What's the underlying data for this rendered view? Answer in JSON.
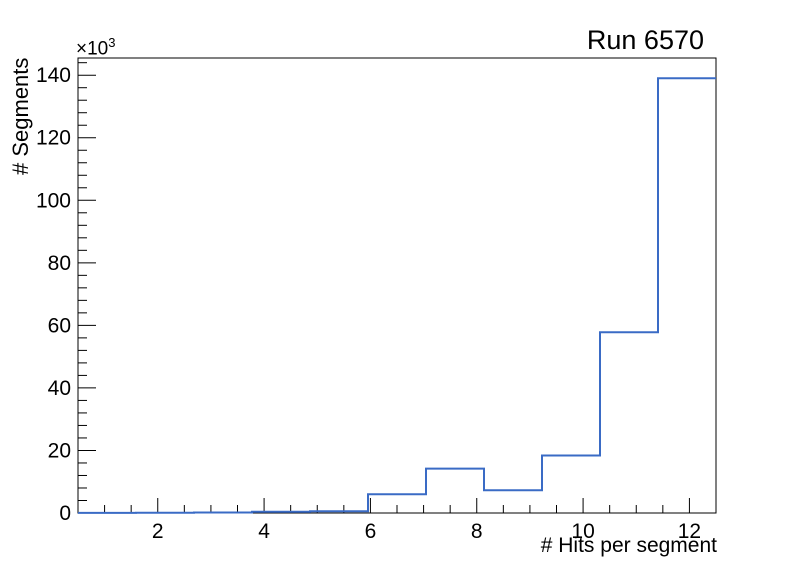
{
  "chart_data": {
    "type": "histogram-step",
    "title": "Run 6570",
    "xlabel": "# Hits per segment",
    "ylabel": "# Segments",
    "y_axis_multiplier": {
      "base": "×10",
      "exp": "3"
    },
    "xlim": [
      0.5,
      12.5
    ],
    "ylim": [
      0,
      145500
    ],
    "bin_edges": [
      0.5,
      1.591,
      2.682,
      3.773,
      4.864,
      5.955,
      7.045,
      8.136,
      9.227,
      10.318,
      11.409,
      12.5
    ],
    "values": [
      20,
      60,
      150,
      400,
      550,
      6000,
      14200,
      7300,
      18400,
      57800,
      139000
    ],
    "x_major_ticks": [
      2,
      4,
      6,
      8,
      10,
      12
    ],
    "x_minor_step": 0.5,
    "y_major_ticks": [
      0,
      20000,
      40000,
      60000,
      80000,
      100000,
      120000,
      140000
    ],
    "y_tick_labels": [
      "0",
      "20",
      "40",
      "60",
      "80",
      "100",
      "120",
      "140"
    ],
    "y_minor_step": 4000,
    "grid": false,
    "legend": "none",
    "line_color": "#3a6bc5",
    "axis_color": "#000000",
    "background_color": "#ffffff"
  }
}
